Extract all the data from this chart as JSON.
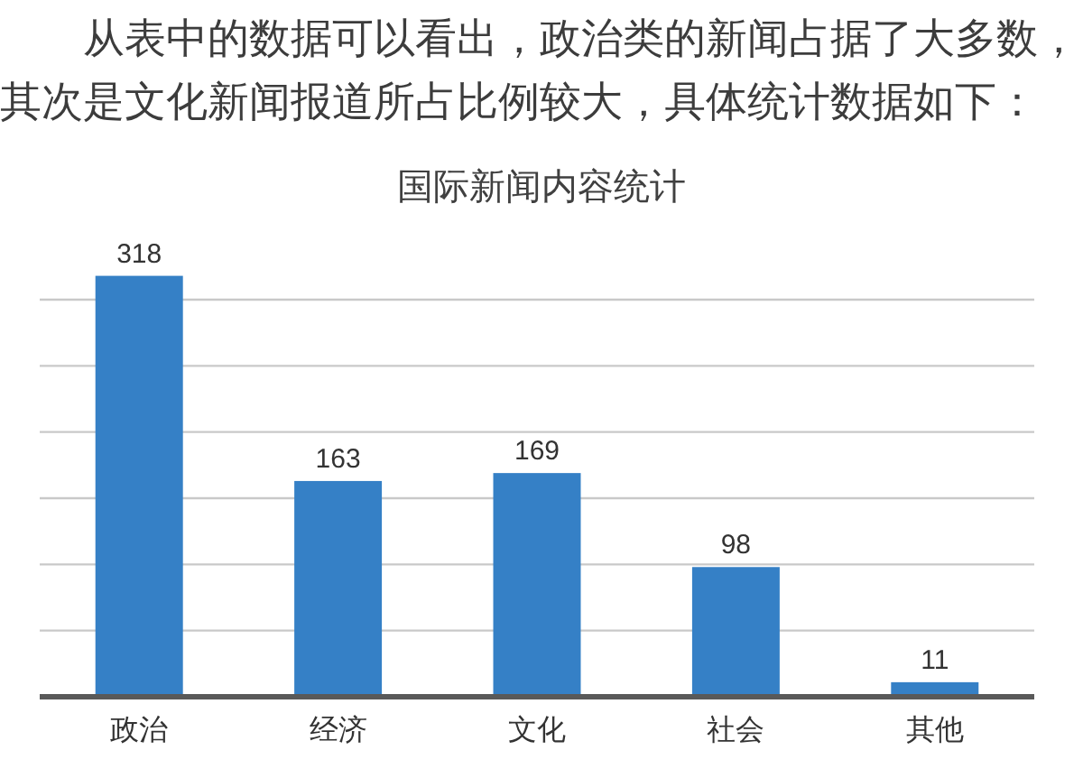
{
  "chart_data": {
    "type": "bar",
    "title": "国际新闻内容统计",
    "annotations": [
      "从表中的数据可以看出，政治类的新闻占据了大多数，其次是文化新闻报道所占比例较大，具体统计数据如下："
    ],
    "categories": [
      "政治",
      "经济",
      "文化",
      "社会",
      "其他"
    ],
    "values": [
      318,
      163,
      169,
      98,
      11
    ],
    "color": "#3580c6",
    "data_labels": true,
    "yticks": [
      {
        "value": 0,
        "label": null
      },
      {
        "value": 50,
        "label": null
      },
      {
        "value": 100,
        "label": null
      },
      {
        "value": 150,
        "label": null
      },
      {
        "value": 200,
        "label": null
      },
      {
        "value": 250,
        "label": null
      },
      {
        "value": 300,
        "label": null
      }
    ],
    "grid": "y",
    "tick_labels": "x"
  }
}
